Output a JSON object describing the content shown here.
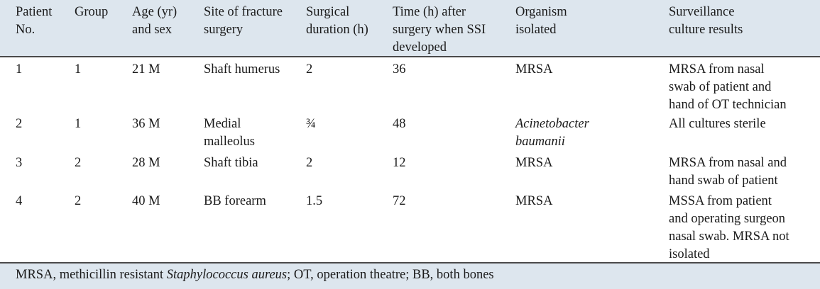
{
  "table": {
    "headers": [
      [
        "Patient",
        "No."
      ],
      [
        "Group"
      ],
      [
        "Age (yr)",
        "and sex"
      ],
      [
        "Site of fracture",
        "surgery"
      ],
      [
        "Surgical",
        "duration (h)"
      ],
      [
        "Time (h) after",
        "surgery when SSI",
        "developed"
      ],
      [
        "Organism",
        "isolated"
      ],
      [
        "Surveillance",
        "culture results"
      ]
    ],
    "rows": [
      {
        "patient": "1",
        "group": "1",
        "age_sex": "21 M",
        "site": [
          "Shaft humerus"
        ],
        "duration": "2",
        "time": "36",
        "organism": [
          "MRSA"
        ],
        "surveillance": [
          "MRSA from nasal",
          "swab of patient and",
          "hand of OT technician"
        ]
      },
      {
        "patient": "2",
        "group": "1",
        "age_sex": "36 M",
        "site": [
          "Medial",
          "malleolus"
        ],
        "duration": "¾",
        "time": "48",
        "organism": [
          "Acinetobacter",
          "baumanii"
        ],
        "surveillance": [
          "All cultures sterile"
        ]
      },
      {
        "patient": "3",
        "group": "2",
        "age_sex": "28 M",
        "site": [
          "Shaft tibia"
        ],
        "duration": "2",
        "time": "12",
        "organism": [
          "MRSA"
        ],
        "surveillance": [
          "MRSA from nasal and",
          "hand swab of patient"
        ]
      },
      {
        "patient": "4",
        "group": "2",
        "age_sex": "40 M",
        "site": [
          "BB forearm"
        ],
        "duration": "1.5",
        "time": "72",
        "organism": [
          "MRSA"
        ],
        "surveillance": [
          "MSSA from patient",
          "and operating surgeon",
          "nasal swab. MRSA not",
          "isolated"
        ]
      }
    ]
  },
  "footnote": {
    "part1": "MRSA, methicillin resistant ",
    "italic": "Staphylococcus aureus",
    "part2": "; OT, operation theatre; BB, both bones"
  }
}
